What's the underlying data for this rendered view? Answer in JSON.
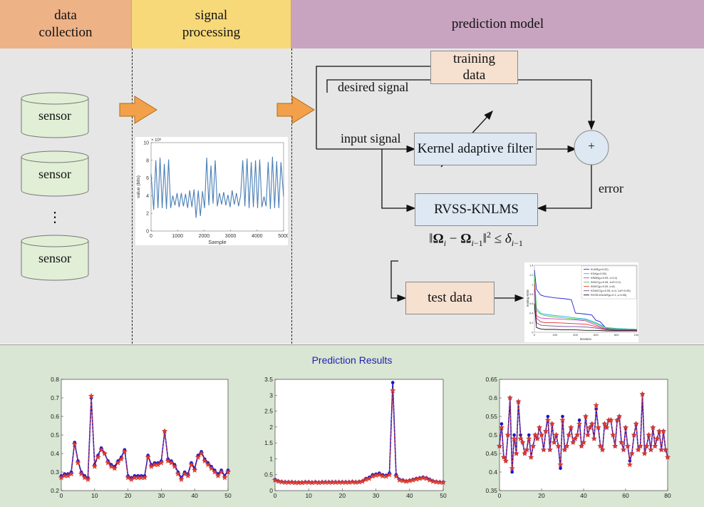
{
  "header": {
    "sections": [
      {
        "label": "data\ncollection"
      },
      {
        "label": "signal\nprocessing"
      },
      {
        "label": "prediction model"
      }
    ]
  },
  "collection": {
    "sensor_label": "sensor",
    "ellipsis": "⋮"
  },
  "processing": {
    "plot": {
      "xlabel": "Sample",
      "ylabel": "value (bits)",
      "exponent": "× 10⁸",
      "xticks": [
        "0",
        "1000",
        "2000",
        "3000",
        "4000",
        "5000"
      ],
      "yticks": [
        "0",
        "2",
        "4",
        "6",
        "8",
        "10"
      ]
    }
  },
  "model": {
    "training_data": "training\ndata",
    "desired_signal": "desired signal",
    "input_signal": "input signal",
    "kernel_filter": "Kernel adaptive filter",
    "sum_symbol": "+",
    "error": "error",
    "rvss": "RVSS-KNLMS",
    "test_data": "test data",
    "legend": [
      "KLMS(μ=0.02)",
      "KSA(μ=0.05)",
      "KRMN(μ=0.09, λ=0.2)",
      "KMCC(μ=0.05, 1/σ²=0.2)",
      "KMVC(μ=0.09, λ=8)",
      "KGMCC(μ=0.05, α=4, 1/σ²=0.05)",
      "RVSS-KNLMS(μ=0.1, ε=0.05)"
    ],
    "mini_plot": {
      "xlabel": "iteration",
      "ylabel": "testing MSE",
      "xticks": [
        "0",
        "200",
        "400",
        "600",
        "800",
        "1000"
      ],
      "yticks": [
        "0",
        "0.2",
        "0.4",
        "0.6",
        "0.8",
        "1",
        "1.2",
        "1.4"
      ]
    }
  },
  "results": {
    "title": "Prediction Results",
    "charts": [
      {
        "xticks": [
          "0",
          "10",
          "20",
          "30",
          "40",
          "50"
        ],
        "yticks": [
          "0.2",
          "0.3",
          "0.4",
          "0.5",
          "0.6",
          "0.7",
          "0.8"
        ]
      },
      {
        "xticks": [
          "0",
          "10",
          "20",
          "30",
          "40",
          "50"
        ],
        "yticks": [
          "0",
          "0.5",
          "1",
          "1.5",
          "2",
          "2.5",
          "3",
          "3.5"
        ]
      },
      {
        "xticks": [
          "0",
          "20",
          "40",
          "60",
          "80"
        ],
        "yticks": [
          "0.35",
          "0.4",
          "0.45",
          "0.5",
          "0.55",
          "0.6",
          "0.65"
        ]
      }
    ]
  },
  "colors": {
    "collection_header": "#eeb287",
    "processing_header": "#f8d97a",
    "model_header": "#c8a4c0",
    "sensor_fill": "#e1efd6",
    "arrow_fill": "#f2a14a",
    "series_true": "#1515d0",
    "series_pred": "#e23a2a",
    "signal_line": "#4a7fb5"
  },
  "chart_data": [
    {
      "type": "line",
      "y_scale_note": "× 10⁸",
      "xlabel": "Sample",
      "ylabel": "value (bits)",
      "xlim": [
        0,
        5000
      ],
      "ylim": [
        0,
        10
      ],
      "series": [
        {
          "x": [
            0,
            100,
            180,
            260,
            340,
            420,
            500,
            580,
            660,
            740,
            820,
            900,
            980,
            1060,
            1140,
            1220,
            1300,
            1380,
            1460,
            1540,
            1620,
            1700,
            1780,
            1860,
            1940,
            2020,
            2100,
            2180,
            2260,
            2340,
            2420,
            2500,
            2580,
            2660,
            2740,
            2820,
            2900,
            2980,
            3060,
            3140,
            3220,
            3300,
            3380,
            3460,
            3540,
            3620,
            3700,
            3780,
            3860,
            3940,
            4020,
            4100,
            4180,
            4260,
            4340,
            4420,
            4500,
            4580,
            4660,
            4740,
            4820,
            4900,
            5000
          ],
          "values": [
            6.5,
            2.4,
            8.0,
            2.6,
            8.3,
            2.6,
            7.6,
            2.5,
            8.1,
            2.6,
            4.0,
            2.9,
            4.3,
            2.7,
            4.3,
            2.8,
            4.2,
            2.6,
            4.6,
            2.7,
            4.7,
            1.5,
            4.6,
            1.7,
            4.5,
            2.6,
            8.3,
            2.9,
            7.4,
            3.1,
            8.0,
            2.8,
            4.3,
            3.0,
            4.4,
            2.9,
            4.1,
            2.7,
            4.6,
            3.0,
            4.3,
            2.8,
            4.0,
            8.0,
            2.8,
            8.2,
            2.6,
            7.8,
            2.7,
            8.0,
            2.6,
            8.1,
            2.7,
            3.9,
            2.8,
            7.8,
            2.5,
            8.4,
            2.6,
            7.9,
            2.6,
            7.8,
            3.9
          ]
        }
      ]
    },
    {
      "type": "line",
      "xlabel": "iteration",
      "ylabel": "testing MSE",
      "xlim": [
        0,
        1000
      ],
      "ylim": [
        0,
        1.4
      ],
      "series": [
        {
          "name": "KLMS(μ=0.02)",
          "x": [
            0,
            20,
            60,
            100,
            200,
            300,
            360,
            400,
            500,
            560,
            600,
            640,
            700,
            800,
            900,
            1000
          ],
          "values": [
            1.3,
            0.9,
            0.78,
            0.75,
            0.72,
            0.7,
            0.68,
            0.4,
            0.38,
            0.36,
            0.25,
            0.22,
            0.08,
            0.07,
            0.07,
            0.06
          ]
        },
        {
          "name": "KSA(μ=0.05)",
          "x": [
            0,
            20,
            60,
            100,
            200,
            300,
            400,
            500,
            600,
            700,
            800,
            900,
            1000
          ],
          "values": [
            1.2,
            0.5,
            0.4,
            0.38,
            0.35,
            0.33,
            0.3,
            0.28,
            0.2,
            0.1,
            0.08,
            0.07,
            0.06
          ]
        },
        {
          "name": "KRMN(μ=0.09, λ=0.2)",
          "x": [
            0,
            20,
            60,
            100,
            200,
            300,
            400,
            500,
            600,
            700,
            800,
            900,
            1000
          ],
          "values": [
            1.1,
            0.35,
            0.3,
            0.29,
            0.28,
            0.27,
            0.26,
            0.24,
            0.15,
            0.07,
            0.06,
            0.06,
            0.05
          ]
        },
        {
          "name": "KMCC(μ=0.05, 1/σ²=0.2)",
          "x": [
            0,
            20,
            60,
            100,
            200,
            300,
            400,
            500,
            600,
            700,
            800,
            900,
            1000
          ],
          "values": [
            1.2,
            0.45,
            0.38,
            0.35,
            0.32,
            0.3,
            0.28,
            0.26,
            0.18,
            0.09,
            0.07,
            0.06,
            0.06
          ]
        },
        {
          "name": "KMVC(μ=0.09, λ=8)",
          "x": [
            0,
            20,
            60,
            100,
            200,
            300,
            400,
            500,
            600,
            700,
            800,
            900,
            1000
          ],
          "values": [
            1.0,
            0.3,
            0.22,
            0.2,
            0.2,
            0.19,
            0.18,
            0.17,
            0.12,
            0.06,
            0.05,
            0.05,
            0.05
          ]
        },
        {
          "name": "KGMCC(μ=0.05, α=4, 1/σ²=0.05)",
          "x": [
            0,
            20,
            60,
            100,
            200,
            300,
            400,
            500,
            600,
            700,
            800,
            900,
            1000
          ],
          "values": [
            0.9,
            0.2,
            0.15,
            0.14,
            0.13,
            0.12,
            0.12,
            0.11,
            0.09,
            0.05,
            0.04,
            0.04,
            0.04
          ]
        },
        {
          "name": "RVSS-KNLMS(μ=0.1, ε=0.05)",
          "x": [
            0,
            20,
            60,
            100,
            200,
            300,
            400,
            500,
            600,
            700,
            800,
            900,
            1000
          ],
          "values": [
            0.6,
            0.1,
            0.07,
            0.06,
            0.06,
            0.05,
            0.05,
            0.04,
            0.04,
            0.03,
            0.03,
            0.03,
            0.03
          ]
        }
      ]
    },
    {
      "type": "line",
      "xlim": [
        0,
        50
      ],
      "ylim": [
        0.2,
        0.8
      ],
      "x": [
        0,
        1,
        2,
        3,
        4,
        5,
        6,
        7,
        8,
        9,
        10,
        11,
        12,
        13,
        14,
        15,
        16,
        17,
        18,
        19,
        20,
        21,
        22,
        23,
        24,
        25,
        26,
        27,
        28,
        29,
        30,
        31,
        32,
        33,
        34,
        35,
        36,
        37,
        38,
        39,
        40,
        41,
        42,
        43,
        44,
        45,
        46,
        47,
        48,
        49,
        50
      ],
      "series": [
        {
          "values": [
            0.28,
            0.29,
            0.29,
            0.3,
            0.46,
            0.36,
            0.3,
            0.28,
            0.27,
            0.7,
            0.34,
            0.39,
            0.43,
            0.4,
            0.36,
            0.34,
            0.33,
            0.36,
            0.38,
            0.42,
            0.28,
            0.27,
            0.28,
            0.28,
            0.28,
            0.28,
            0.39,
            0.34,
            0.35,
            0.35,
            0.36,
            0.52,
            0.37,
            0.36,
            0.34,
            0.3,
            0.27,
            0.3,
            0.29,
            0.35,
            0.32,
            0.39,
            0.41,
            0.37,
            0.35,
            0.33,
            0.31,
            0.29,
            0.31,
            0.28,
            0.31
          ]
        },
        {
          "values": [
            0.27,
            0.28,
            0.28,
            0.29,
            0.45,
            0.35,
            0.29,
            0.27,
            0.26,
            0.71,
            0.33,
            0.38,
            0.42,
            0.4,
            0.35,
            0.33,
            0.32,
            0.35,
            0.37,
            0.41,
            0.27,
            0.26,
            0.27,
            0.27,
            0.27,
            0.27,
            0.38,
            0.33,
            0.34,
            0.34,
            0.35,
            0.52,
            0.36,
            0.35,
            0.33,
            0.29,
            0.26,
            0.29,
            0.28,
            0.34,
            0.31,
            0.38,
            0.4,
            0.36,
            0.34,
            0.32,
            0.3,
            0.28,
            0.3,
            0.27,
            0.3
          ]
        }
      ]
    },
    {
      "type": "line",
      "xlim": [
        0,
        50
      ],
      "ylim": [
        0,
        3.5
      ],
      "x": [
        0,
        1,
        2,
        3,
        4,
        5,
        6,
        7,
        8,
        9,
        10,
        11,
        12,
        13,
        14,
        15,
        16,
        17,
        18,
        19,
        20,
        21,
        22,
        23,
        24,
        25,
        26,
        27,
        28,
        29,
        30,
        31,
        32,
        33,
        34,
        35,
        36,
        37,
        38,
        39,
        40,
        41,
        42,
        43,
        44,
        45,
        46,
        47,
        48,
        49,
        50
      ],
      "series": [
        {
          "values": [
            0.35,
            0.3,
            0.28,
            0.27,
            0.27,
            0.27,
            0.26,
            0.26,
            0.26,
            0.27,
            0.27,
            0.26,
            0.27,
            0.26,
            0.27,
            0.27,
            0.27,
            0.27,
            0.27,
            0.27,
            0.27,
            0.27,
            0.27,
            0.28,
            0.27,
            0.28,
            0.3,
            0.38,
            0.42,
            0.5,
            0.52,
            0.55,
            0.5,
            0.48,
            0.55,
            3.4,
            0.5,
            0.35,
            0.33,
            0.3,
            0.32,
            0.35,
            0.38,
            0.4,
            0.42,
            0.4,
            0.35,
            0.3,
            0.28,
            0.27,
            0.27
          ]
        },
        {
          "values": [
            0.33,
            0.29,
            0.27,
            0.26,
            0.26,
            0.26,
            0.25,
            0.25,
            0.25,
            0.26,
            0.26,
            0.25,
            0.26,
            0.25,
            0.26,
            0.26,
            0.26,
            0.26,
            0.26,
            0.26,
            0.26,
            0.26,
            0.26,
            0.27,
            0.26,
            0.27,
            0.29,
            0.35,
            0.38,
            0.45,
            0.48,
            0.5,
            0.46,
            0.45,
            0.5,
            3.15,
            0.45,
            0.33,
            0.31,
            0.29,
            0.31,
            0.33,
            0.36,
            0.38,
            0.4,
            0.38,
            0.33,
            0.29,
            0.27,
            0.26,
            0.26
          ]
        }
      ]
    },
    {
      "type": "line",
      "xlim": [
        0,
        80
      ],
      "ylim": [
        0.35,
        0.65
      ],
      "x": [
        0,
        1,
        2,
        3,
        4,
        5,
        6,
        7,
        8,
        9,
        10,
        11,
        12,
        13,
        14,
        15,
        16,
        17,
        18,
        19,
        20,
        21,
        22,
        23,
        24,
        25,
        26,
        27,
        28,
        29,
        30,
        31,
        32,
        33,
        34,
        35,
        36,
        37,
        38,
        39,
        40,
        41,
        42,
        43,
        44,
        45,
        46,
        47,
        48,
        49,
        50,
        51,
        52,
        53,
        54,
        55,
        56,
        57,
        58,
        59,
        60,
        61,
        62,
        63,
        64,
        65,
        66,
        67,
        68,
        69,
        70,
        71,
        72,
        73,
        74,
        75,
        76,
        77,
        78,
        79,
        80
      ],
      "series": [
        {
          "values": [
            0.47,
            0.53,
            0.44,
            0.43,
            0.5,
            0.6,
            0.4,
            0.5,
            0.45,
            0.59,
            0.5,
            0.48,
            0.45,
            0.46,
            0.5,
            0.44,
            0.47,
            0.5,
            0.49,
            0.52,
            0.5,
            0.46,
            0.51,
            0.55,
            0.46,
            0.53,
            0.48,
            0.5,
            0.47,
            0.41,
            0.55,
            0.46,
            0.47,
            0.5,
            0.52,
            0.48,
            0.49,
            0.5,
            0.54,
            0.47,
            0.48,
            0.55,
            0.5,
            0.52,
            0.53,
            0.49,
            0.57,
            0.52,
            0.47,
            0.46,
            0.53,
            0.52,
            0.54,
            0.54,
            0.5,
            0.47,
            0.54,
            0.55,
            0.48,
            0.46,
            0.52,
            0.47,
            0.43,
            0.45,
            0.5,
            0.53,
            0.46,
            0.47,
            0.61,
            0.45,
            0.47,
            0.5,
            0.46,
            0.52,
            0.47,
            0.49,
            0.51,
            0.46,
            0.51,
            0.46,
            0.44
          ]
        },
        {
          "values": [
            0.47,
            0.52,
            0.44,
            0.43,
            0.5,
            0.6,
            0.41,
            0.49,
            0.45,
            0.59,
            0.49,
            0.48,
            0.45,
            0.46,
            0.49,
            0.44,
            0.47,
            0.5,
            0.49,
            0.52,
            0.5,
            0.46,
            0.51,
            0.54,
            0.46,
            0.53,
            0.48,
            0.5,
            0.47,
            0.42,
            0.54,
            0.46,
            0.47,
            0.5,
            0.52,
            0.48,
            0.49,
            0.5,
            0.53,
            0.47,
            0.48,
            0.55,
            0.5,
            0.52,
            0.53,
            0.49,
            0.58,
            0.52,
            0.47,
            0.46,
            0.53,
            0.52,
            0.54,
            0.54,
            0.5,
            0.47,
            0.54,
            0.55,
            0.48,
            0.46,
            0.52,
            0.47,
            0.42,
            0.45,
            0.5,
            0.53,
            0.46,
            0.47,
            0.61,
            0.45,
            0.47,
            0.5,
            0.46,
            0.52,
            0.47,
            0.49,
            0.51,
            0.46,
            0.51,
            0.46,
            0.44
          ]
        }
      ]
    }
  ]
}
